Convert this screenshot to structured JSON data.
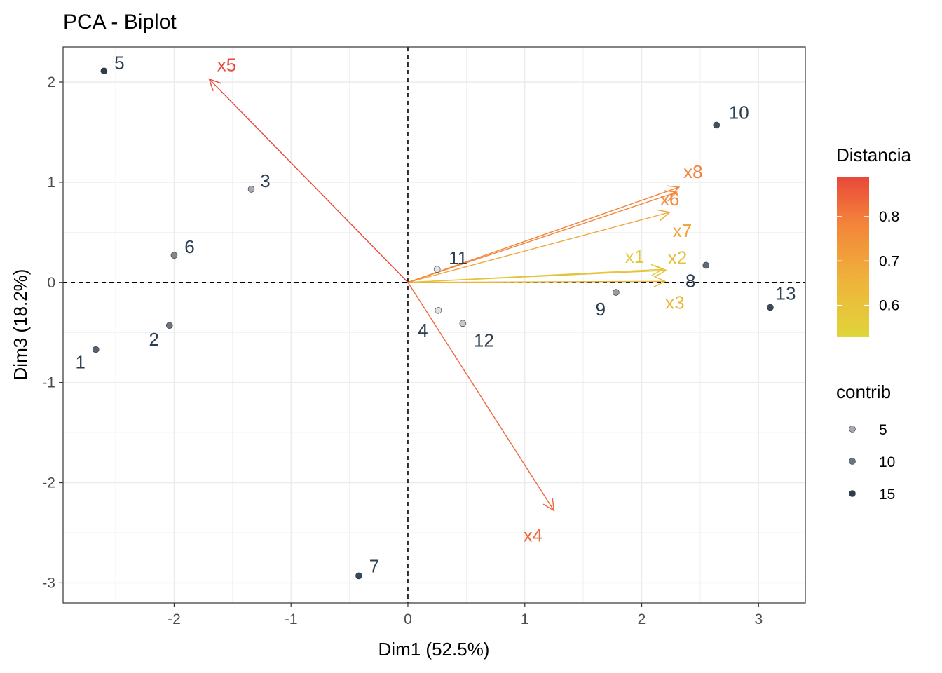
{
  "chart_data": {
    "type": "scatter",
    "title": "PCA - Biplot",
    "xlabel": "Dim1 (52.5%)",
    "ylabel": "Dim3 (18.2%)",
    "xlim": [
      -2.95,
      3.4
    ],
    "ylim": [
      -3.2,
      2.35
    ],
    "x_ticks": [
      -2,
      -1,
      0,
      1,
      2,
      3
    ],
    "y_ticks": [
      -3,
      -2,
      -1,
      0,
      1,
      2
    ],
    "x_tick_labels": [
      "-2",
      "-1",
      "0",
      "1",
      "2",
      "3"
    ],
    "y_tick_labels": [
      "-3",
      "-2",
      "-1",
      "0",
      "1",
      "2"
    ],
    "grid": true,
    "reference_lines": {
      "x": 0,
      "y": 0,
      "style": "dashed"
    },
    "individuals": [
      {
        "label": "1",
        "x": -2.67,
        "y": -0.67,
        "contrib": 12,
        "color": "#556270"
      },
      {
        "label": "2",
        "x": -2.04,
        "y": -0.43,
        "contrib": 10,
        "color": "#6a7580"
      },
      {
        "label": "3",
        "x": -1.34,
        "y": 0.93,
        "contrib": 5,
        "color": "#a4abb2"
      },
      {
        "label": "4",
        "x": 0.26,
        "y": -0.28,
        "contrib": 1,
        "color": "#dfe2e5"
      },
      {
        "label": "5",
        "x": -2.6,
        "y": 2.11,
        "contrib": 17,
        "color": "#2c3e50"
      },
      {
        "label": "6",
        "x": -2.0,
        "y": 0.27,
        "contrib": 8,
        "color": "#7f8891"
      },
      {
        "label": "7",
        "x": -0.42,
        "y": -2.93,
        "contrib": 16,
        "color": "#34495e"
      },
      {
        "label": "8",
        "x": 2.55,
        "y": 0.17,
        "contrib": 11,
        "color": "#5d6977"
      },
      {
        "label": "9",
        "x": 1.78,
        "y": -0.1,
        "contrib": 6,
        "color": "#969ea6"
      },
      {
        "label": "10",
        "x": 2.64,
        "y": 1.57,
        "contrib": 14,
        "color": "#3f4f60"
      },
      {
        "label": "11",
        "x": 0.25,
        "y": 0.13,
        "contrib": 1,
        "color": "#e2e5e8"
      },
      {
        "label": "12",
        "x": 0.47,
        "y": -0.41,
        "contrib": 3,
        "color": "#c4c9ce"
      },
      {
        "label": "13",
        "x": 3.1,
        "y": -0.25,
        "contrib": 15,
        "color": "#3a4a5b"
      }
    ],
    "individual_label_offsets": {
      "1": [
        -22,
        18
      ],
      "2": [
        -22,
        20
      ],
      "3": [
        20,
        -12
      ],
      "4": [
        -22,
        28
      ],
      "5": [
        22,
        -12
      ],
      "6": [
        22,
        -12
      ],
      "7": [
        22,
        -14
      ],
      "8": [
        -22,
        22
      ],
      "9": [
        -22,
        24
      ],
      "10": [
        32,
        -18
      ],
      "11": [
        30,
        -16
      ],
      "12": [
        30,
        24
      ],
      "13": [
        22,
        -20
      ]
    },
    "variables": [
      {
        "label": "x1",
        "x": 2.18,
        "y": 0.13,
        "distancia": 0.55,
        "color": "#e0c93a"
      },
      {
        "label": "x2",
        "x": 2.21,
        "y": 0.12,
        "distancia": 0.6,
        "color": "#e6c03a"
      },
      {
        "label": "x3",
        "x": 2.2,
        "y": 0.01,
        "distancia": 0.62,
        "color": "#ebb53b"
      },
      {
        "label": "x4",
        "x": 1.25,
        "y": -2.28,
        "distancia": 0.82,
        "color": "#f0653a"
      },
      {
        "label": "x5",
        "x": -1.7,
        "y": 2.03,
        "distancia": 0.88,
        "color": "#e8483a"
      },
      {
        "label": "x6",
        "x": 2.3,
        "y": 0.9,
        "distancia": 0.76,
        "color": "#f28a3a"
      },
      {
        "label": "x7",
        "x": 2.24,
        "y": 0.7,
        "distancia": 0.7,
        "color": "#efa63b"
      },
      {
        "label": "x8",
        "x": 2.32,
        "y": 0.95,
        "distancia": 0.77,
        "color": "#f3823a"
      }
    ],
    "variable_label_offsets": {
      "x1": [
        -40,
        -18
      ],
      "x2": [
        16,
        -18
      ],
      "x3": [
        14,
        30
      ],
      "x4": [
        -30,
        35
      ],
      "x5": [
        25,
        -20
      ],
      "x6": [
        -10,
        10
      ],
      "x7": [
        18,
        26
      ],
      "x8": [
        20,
        -22
      ]
    },
    "legend": {
      "placement": "right",
      "distancia": {
        "title": "Distancia",
        "range": [
          0.53,
          0.89
        ],
        "ticks": [
          0.6,
          0.7,
          0.8
        ],
        "tick_labels": [
          "0.6",
          "0.7",
          "0.8"
        ],
        "colors": [
          "#e0d53a",
          "#efb33b",
          "#f4853a",
          "#e8483a"
        ]
      },
      "contrib": {
        "title": "contrib",
        "entries": [
          {
            "label": "5",
            "color": "#a4abb2"
          },
          {
            "label": "10",
            "color": "#6a7580"
          },
          {
            "label": "15",
            "color": "#2c3e50"
          }
        ]
      }
    }
  }
}
